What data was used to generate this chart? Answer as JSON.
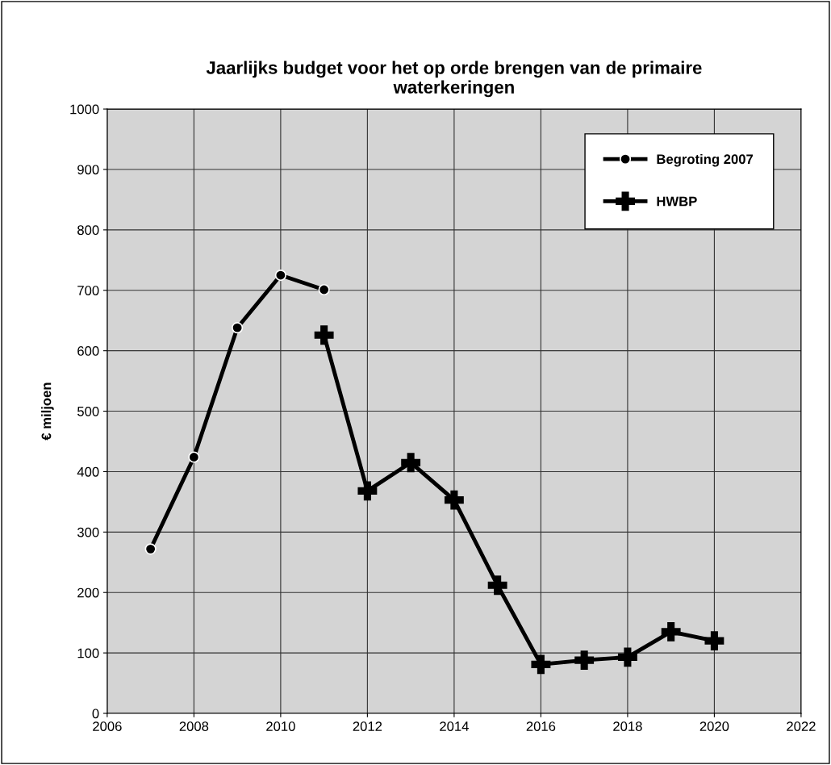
{
  "chart_data": {
    "type": "line",
    "title": "Jaarlijks budget voor het op orde brengen van de primaire\nwaterkeringen",
    "ylabel": "€ miljoen",
    "xlim": [
      2006,
      2022
    ],
    "xticks": [
      2006,
      2008,
      2010,
      2012,
      2014,
      2016,
      2018,
      2020,
      2022
    ],
    "ylim": [
      0,
      1000
    ],
    "yticks": [
      0,
      100,
      200,
      300,
      400,
      500,
      600,
      700,
      800,
      900,
      1000
    ],
    "grid": true,
    "legend": "top right",
    "line_style": "solid",
    "series": [
      {
        "name": "Begroting 2007",
        "color": "#000000",
        "marker": "circle",
        "x": [
          2007,
          2008,
          2009,
          2010,
          2011
        ],
        "values": [
          272,
          424,
          638,
          725,
          701
        ]
      },
      {
        "name": "HWBP",
        "color": "#000000",
        "marker": "cross",
        "x": [
          2011,
          2012,
          2013,
          2014,
          2015,
          2016,
          2017,
          2018,
          2019,
          2020
        ],
        "values": [
          626,
          368,
          415,
          353,
          212,
          81,
          88,
          93,
          135,
          120
        ]
      }
    ]
  }
}
